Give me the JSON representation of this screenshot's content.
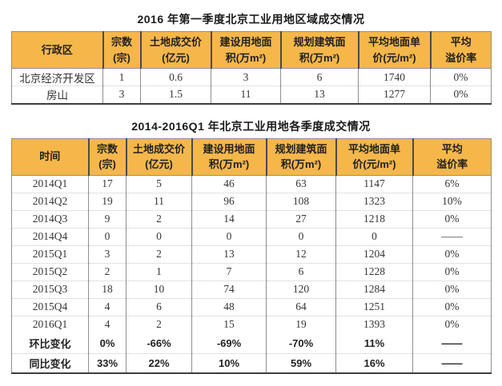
{
  "colors": {
    "header_bg": "#F5B74A",
    "header_text": "#1f1f1f",
    "body_text": "#363636",
    "title_text": "#1a1a1a",
    "border_dark": "#4a4a4a",
    "border_mid": "#8f8f8f",
    "border_light": "#c6c6c6",
    "border_bottom": "#3d3d3d"
  },
  "chart_data": [
    {
      "type": "table",
      "title": "2016 年第一季度北京工业用地区域成交情况",
      "columns": [
        "行政区",
        "宗数\n(宗)",
        "土地成交价\n(亿元)",
        "建设用地面\n积(万m²)",
        "规划建筑面\n积(万m²)",
        "平均地面单\n价(元/m²)",
        "平均\n溢价率"
      ],
      "rows": [
        [
          "北京经济开发区",
          "1",
          "0.6",
          "3",
          "6",
          "1740",
          "0%"
        ],
        [
          "房山",
          "3",
          "1.5",
          "11",
          "13",
          "1277",
          "0%"
        ]
      ]
    },
    {
      "type": "table",
      "title": "2014-2016Q1 年北京工业用地各季度成交情况",
      "columns": [
        "时间",
        "宗数\n(宗)",
        "土地成交价\n(亿元)",
        "建设用地面\n积(万m²)",
        "规划建筑面\n积(万m²)",
        "平均地面单\n价(元/m²)",
        "平均\n溢价率"
      ],
      "rows": [
        [
          "2014Q1",
          "17",
          "5",
          "46",
          "63",
          "1147",
          "6%"
        ],
        [
          "2014Q2",
          "19",
          "11",
          "96",
          "108",
          "1323",
          "10%"
        ],
        [
          "2014Q3",
          "9",
          "2",
          "14",
          "27",
          "1218",
          "0%"
        ],
        [
          "2014Q4",
          "0",
          "0",
          "0",
          "0",
          "0",
          "——"
        ],
        [
          "2015Q1",
          "3",
          "2",
          "13",
          "12",
          "1204",
          "0%"
        ],
        [
          "2015Q2",
          "2",
          "1",
          "7",
          "6",
          "1228",
          "0%"
        ],
        [
          "2015Q3",
          "18",
          "10",
          "74",
          "120",
          "1284",
          "0%"
        ],
        [
          "2015Q4",
          "4",
          "6",
          "48",
          "64",
          "1251",
          "0%"
        ],
        [
          "2016Q1",
          "4",
          "2",
          "15",
          "19",
          "1393",
          "0%"
        ]
      ],
      "summary_rows": [
        [
          "环比变化",
          "0%",
          "-66%",
          "-69%",
          "-70%",
          "11%",
          "——"
        ],
        [
          "同比变化",
          "33%",
          "22%",
          "10%",
          "59%",
          "16%",
          "——"
        ]
      ]
    }
  ]
}
